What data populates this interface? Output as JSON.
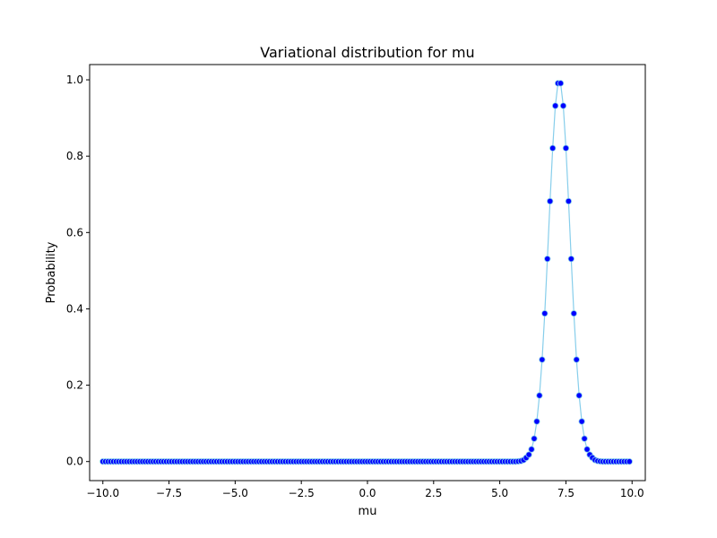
{
  "chart_data": {
    "type": "line",
    "title": "Variational distribution for mu",
    "xlabel": "mu",
    "ylabel": "Probability",
    "xlim": [
      -10.5,
      10.5
    ],
    "ylim": [
      -0.05,
      1.04
    ],
    "xticks": [
      -10.0,
      -7.5,
      -5.0,
      -2.5,
      0.0,
      2.5,
      5.0,
      7.5,
      10.0
    ],
    "xtick_labels": [
      "−10.0",
      "−7.5",
      "−5.0",
      "−2.5",
      "0.0",
      "2.5",
      "5.0",
      "7.5",
      "10.0"
    ],
    "yticks": [
      0.0,
      0.2,
      0.4,
      0.6,
      0.8,
      1.0
    ],
    "ytick_labels": [
      "0.0",
      "0.2",
      "0.4",
      "0.6",
      "0.8",
      "1.0"
    ],
    "grid": false,
    "legend": "none",
    "line_color": "#87ceeb",
    "marker_color": "#0000ff",
    "marker_edge_color": "#87ceeb",
    "series": [
      {
        "x_start": -10.0,
        "x_end": 9.9,
        "x_step": 0.1,
        "points": [
          [
            5.7,
            0.0005
          ],
          [
            5.8,
            0.0015
          ],
          [
            5.9,
            0.004
          ],
          [
            6.0,
            0.01
          ],
          [
            6.1,
            0.018
          ],
          [
            6.2,
            0.032
          ],
          [
            6.3,
            0.06
          ],
          [
            6.4,
            0.105
          ],
          [
            6.5,
            0.173
          ],
          [
            6.6,
            0.267
          ],
          [
            6.7,
            0.388
          ],
          [
            6.8,
            0.531
          ],
          [
            6.9,
            0.682
          ],
          [
            7.0,
            0.821
          ],
          [
            7.1,
            0.932
          ],
          [
            7.2,
            0.991
          ],
          [
            7.3,
            0.991
          ],
          [
            7.4,
            0.932
          ],
          [
            7.5,
            0.821
          ],
          [
            7.6,
            0.682
          ],
          [
            7.7,
            0.531
          ],
          [
            7.8,
            0.388
          ],
          [
            7.9,
            0.267
          ],
          [
            8.0,
            0.173
          ],
          [
            8.1,
            0.105
          ],
          [
            8.2,
            0.06
          ],
          [
            8.3,
            0.032
          ],
          [
            8.4,
            0.018
          ],
          [
            8.5,
            0.01
          ],
          [
            8.6,
            0.004
          ],
          [
            8.7,
            0.0015
          ],
          [
            8.8,
            0.0005
          ]
        ]
      }
    ]
  }
}
